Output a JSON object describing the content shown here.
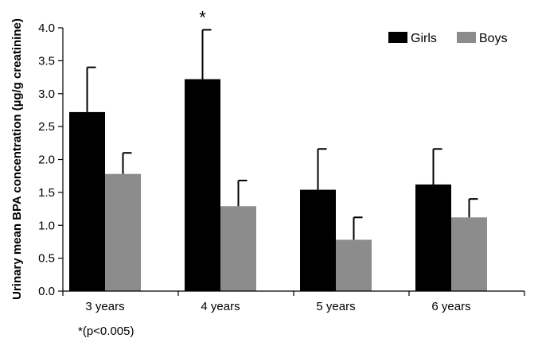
{
  "chart_data": {
    "type": "bar",
    "categories": [
      "3 years",
      "4 years",
      "5 years",
      "6 years"
    ],
    "series": [
      {
        "name": "Girls",
        "color": "#000000",
        "values": [
          2.72,
          3.22,
          1.54,
          1.62
        ],
        "errors": [
          0.68,
          0.75,
          0.62,
          0.54
        ]
      },
      {
        "name": "Boys",
        "color": "#8c8c8c",
        "values": [
          1.78,
          1.29,
          0.78,
          1.12
        ],
        "errors": [
          0.32,
          0.39,
          0.34,
          0.28
        ]
      }
    ],
    "ylabel": "Urinary mean BPA concentration (µg/g creatinine)",
    "xlabel": "",
    "ylim": [
      0.0,
      4.0
    ],
    "yticks": [
      "0.0",
      "0.5",
      "1.0",
      "1.5",
      "2.0",
      "2.5",
      "3.0",
      "3.5",
      "4.0"
    ],
    "ytick_values": [
      0,
      0.5,
      1.0,
      1.5,
      2.0,
      2.5,
      3.0,
      3.5,
      4.0
    ],
    "grid": false,
    "legend_position": "top-right",
    "annotations": [
      {
        "text": "*",
        "category": "4 years",
        "series": "Girls"
      }
    ],
    "footnote": "*(p<0.005)"
  }
}
